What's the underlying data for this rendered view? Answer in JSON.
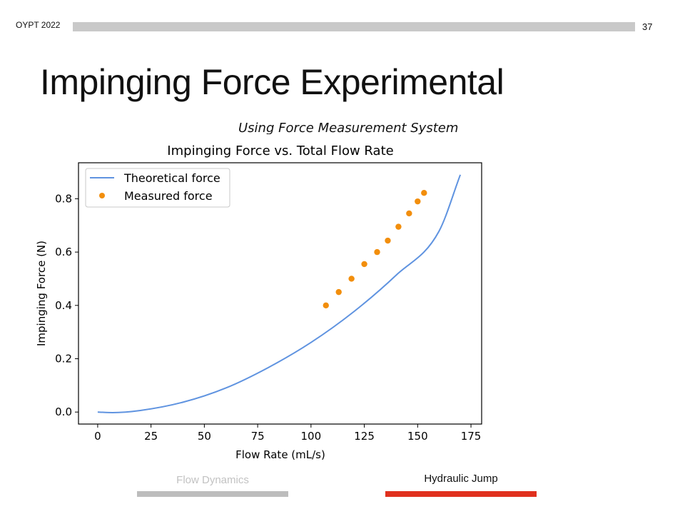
{
  "header": {
    "label": "OYPT 2022",
    "page_number": "37"
  },
  "slide": {
    "title": "Impinging Force Experimental",
    "subtitle": "Using Force Measurement System"
  },
  "nav": {
    "prev_label": "Flow Dynamics",
    "next_label": "Hydraulic Jump",
    "colors": {
      "prev_bar": "#bdbdbd",
      "next_bar": "#e0301e"
    }
  },
  "chart_data": {
    "type": "line",
    "title": "Impinging Force vs. Total Flow Rate",
    "xlabel": "Flow Rate (mL/s)",
    "ylabel": "Impinging Force (N)",
    "xlim": [
      -9,
      180
    ],
    "ylim": [
      -0.045,
      0.935
    ],
    "xticks": [
      0,
      25,
      50,
      75,
      100,
      125,
      150,
      175
    ],
    "yticks": [
      0.0,
      0.2,
      0.4,
      0.6,
      0.8
    ],
    "xtick_labels": [
      "0",
      "25",
      "50",
      "75",
      "100",
      "125",
      "150",
      "175"
    ],
    "ytick_labels": [
      "0.0",
      "0.2",
      "0.4",
      "0.6",
      "0.8"
    ],
    "grid": false,
    "legend_position": "top-left",
    "series": [
      {
        "name": "Theoretical force",
        "type": "line",
        "color": "#5f93e0",
        "x": [
          0,
          7,
          20,
          40,
          60,
          80,
          100,
          120,
          140,
          160,
          170
        ],
        "y": [
          0.0,
          -0.002,
          0.006,
          0.037,
          0.09,
          0.167,
          0.261,
          0.376,
          0.514,
          0.678,
          0.89
        ]
      },
      {
        "name": "Measured force",
        "type": "scatter",
        "color": "#f28e0c",
        "x": [
          107,
          113,
          119,
          125,
          131,
          136,
          141,
          146,
          150,
          153
        ],
        "y": [
          0.4,
          0.45,
          0.5,
          0.555,
          0.6,
          0.643,
          0.695,
          0.745,
          0.79,
          0.822
        ]
      }
    ]
  }
}
